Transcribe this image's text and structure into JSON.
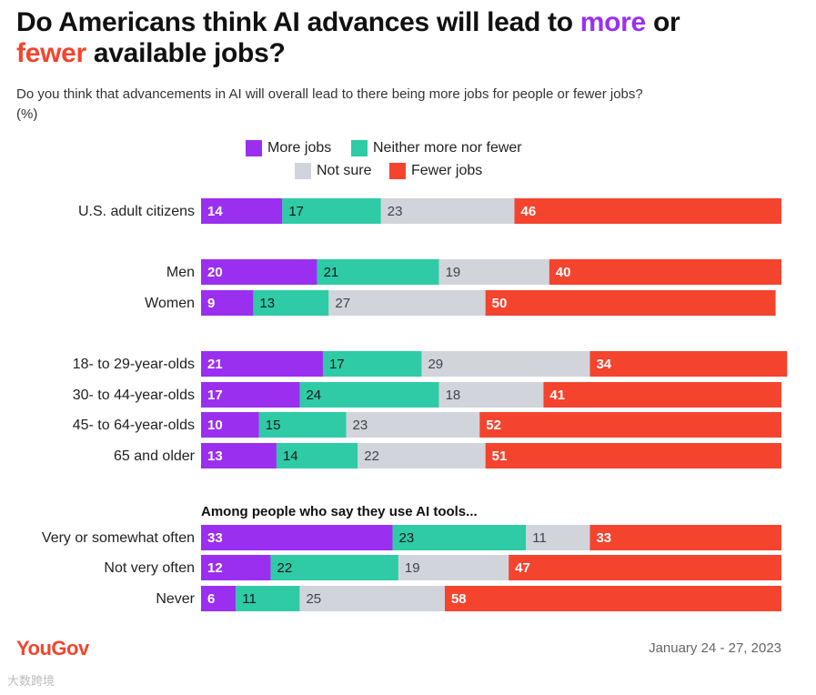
{
  "header": {
    "title_part1": "Do Americans think AI advances will lead to ",
    "title_more": "more",
    "title_part2": " or",
    "title_fewer": "fewer",
    "title_part3": " available jobs?",
    "subtitle": "Do you think that advancements in AI will overall lead to there being more jobs for people or fewer jobs?",
    "unit": "(%)"
  },
  "legend": {
    "more": "More jobs",
    "neither": "Neither more nor fewer",
    "not_sure": "Not sure",
    "fewer": "Fewer jobs"
  },
  "colors": {
    "more": "#9b2ff0",
    "neither": "#2ecba6",
    "not_sure": "#d2d4dc",
    "fewer": "#f4442e"
  },
  "chart_data": {
    "type": "bar",
    "orientation": "horizontal-stacked-100",
    "series": [
      {
        "name": "More jobs",
        "values": [
          14,
          20,
          9,
          21,
          17,
          10,
          13,
          33,
          12,
          6
        ]
      },
      {
        "name": "Neither more nor fewer",
        "values": [
          17,
          21,
          13,
          17,
          24,
          15,
          14,
          23,
          22,
          11
        ]
      },
      {
        "name": "Not sure",
        "values": [
          23,
          19,
          27,
          29,
          18,
          23,
          22,
          11,
          19,
          25
        ]
      },
      {
        "name": "Fewer jobs",
        "values": [
          46,
          40,
          50,
          34,
          41,
          52,
          51,
          33,
          47,
          58
        ]
      }
    ],
    "categories": [
      "U.S. adult citizens",
      "Men",
      "Women",
      "18- to 29-year-olds",
      "30- to 44-year-olds",
      "45- to 64-year-olds",
      "65 and older",
      "Very or somewhat often",
      "Not very often",
      "Never"
    ],
    "groups": [
      {
        "label": "",
        "rows": [
          0
        ]
      },
      {
        "label": "",
        "rows": [
          1,
          2
        ]
      },
      {
        "label": "",
        "rows": [
          3,
          4,
          5,
          6
        ]
      },
      {
        "label": "Among people who say they use AI tools...",
        "rows": [
          7,
          8,
          9
        ]
      }
    ]
  },
  "footer": {
    "logo": "YouGov",
    "date": "January 24 - 27, 2023",
    "watermark": "大数跨境"
  }
}
